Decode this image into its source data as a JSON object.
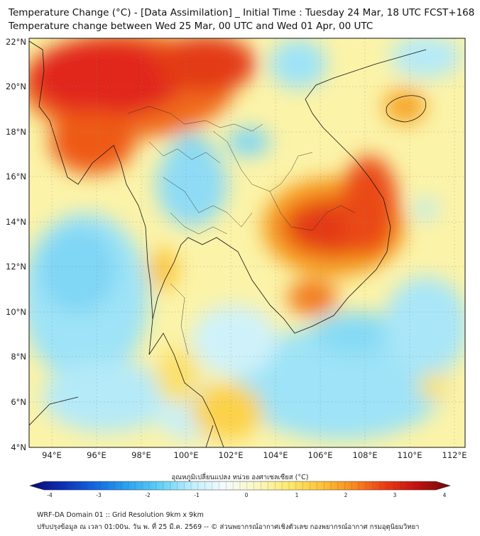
{
  "header": {
    "title_line1": "Temperature Change (°C) - [Data Assimilation] _ Initial Time : Tuesday 24 Mar, 18 UTC FCST+168",
    "title_line2": "Temperature change between Wed 25 Mar, 00 UTC and Wed 01 Apr, 00 UTC"
  },
  "axes": {
    "lat_labels": [
      "22°N",
      "20°N",
      "18°N",
      "16°N",
      "14°N",
      "12°N",
      "10°N",
      "8°N",
      "6°N",
      "4°N"
    ],
    "lon_labels": [
      "94°E",
      "96°E",
      "98°E",
      "100°E",
      "102°E",
      "104°E",
      "106°E",
      "108°E",
      "110°E",
      "112°E"
    ]
  },
  "colorbar": {
    "label": "อุณหภูมิเปลี่ยนแปลง หน่วย องศาเซลเซียส (°C)",
    "ticks": [
      "-4",
      "-3",
      "-2",
      "-1",
      "0",
      "1",
      "2",
      "3",
      "4"
    ],
    "colors": [
      "#0a0a6e",
      "#0c2fb5",
      "#1467e0",
      "#2aa3f0",
      "#5fd0f7",
      "#bfeefc",
      "#f4fbfd",
      "#fbf7c4",
      "#fdea6e",
      "#fcc43a",
      "#f98b1f",
      "#ec3a15",
      "#c21010",
      "#6e0808"
    ]
  },
  "footer": {
    "line1": "WRF-DA Domain 01 :: Grid Resolution 9km x 9km",
    "line2": "ปรับปรุงข้อมูล ณ เวลา 01:00น. วัน พ. ที่ 25 มี.ค. 2569 -- © ส่วนพยากรณ์อากาศเชิงตัวเลข กองพยากรณ์อากาศ กรมอุตุนิยมวิทยา"
  }
}
